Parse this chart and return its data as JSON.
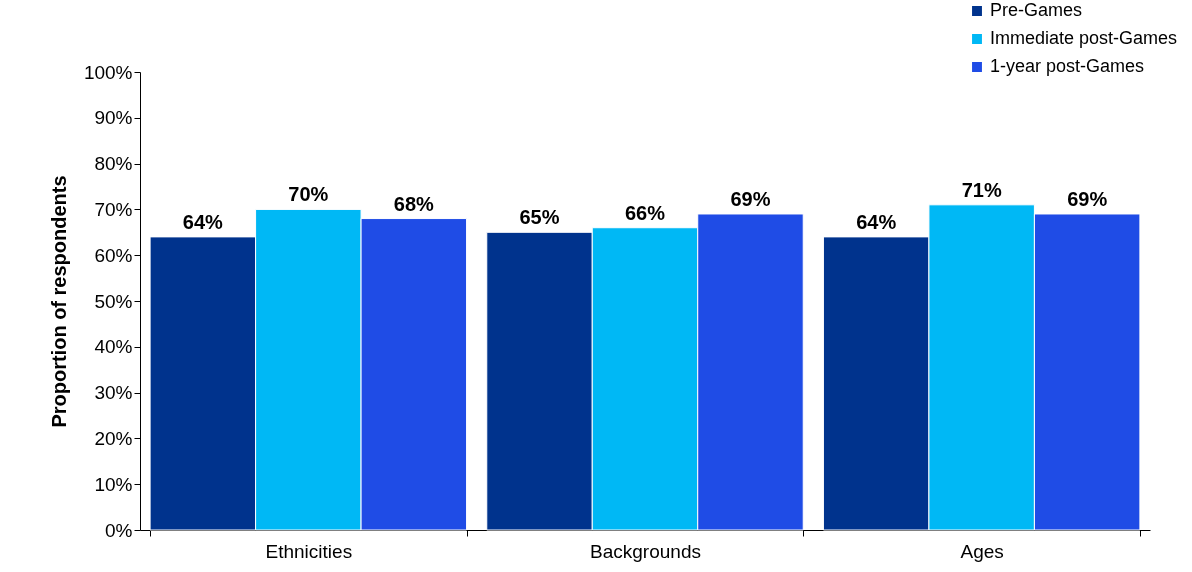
{
  "chart_data": {
    "type": "bar",
    "ylabel": "Proportion of respondents",
    "categories": [
      "Ethnicities",
      "Backgrounds",
      "Ages"
    ],
    "series": [
      {
        "name": "Pre-Games",
        "color": "#00338d",
        "values": [
          64,
          65,
          64
        ],
        "value_labels": [
          "64%",
          "65%",
          "64%"
        ]
      },
      {
        "name": "Immediate post-Games",
        "color": "#00b8f5",
        "values": [
          70,
          66,
          71
        ],
        "value_labels": [
          "70%",
          "66%",
          "71%"
        ]
      },
      {
        "name": "1-year post-Games",
        "color": "#1f4ce6",
        "values": [
          68,
          69,
          69
        ],
        "value_labels": [
          "68%",
          "69%",
          "69%"
        ]
      }
    ],
    "ylim": [
      0,
      100
    ],
    "yticks": [
      {
        "value": 0,
        "label": "0%"
      },
      {
        "value": 10,
        "label": "10%"
      },
      {
        "value": 20,
        "label": "20%"
      },
      {
        "value": 30,
        "label": "30%"
      },
      {
        "value": 40,
        "label": "40%"
      },
      {
        "value": 50,
        "label": "50%"
      },
      {
        "value": 60,
        "label": "60%"
      },
      {
        "value": 70,
        "label": "70%"
      },
      {
        "value": 80,
        "label": "80%"
      },
      {
        "value": 90,
        "label": "90%"
      },
      {
        "value": 100,
        "label": "100%"
      }
    ],
    "legend": "top right"
  }
}
